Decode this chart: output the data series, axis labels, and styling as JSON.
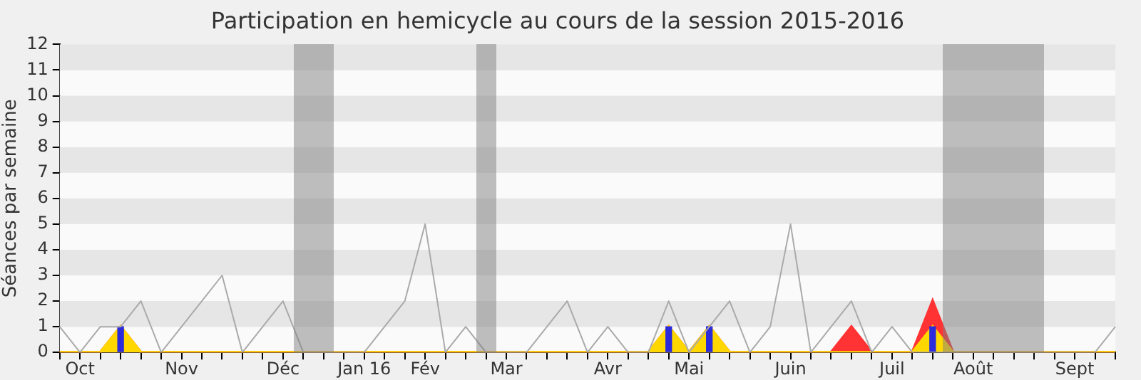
{
  "chart_data": {
    "type": "line",
    "title": "Participation en hemicycle au cours de la session 2015-2016",
    "ylabel": "Séances par semaine",
    "categories": [
      null,
      "Oct",
      null,
      null,
      null,
      null,
      "Nov",
      null,
      null,
      null,
      null,
      "Déc",
      null,
      null,
      null,
      "Jan 16",
      null,
      null,
      "Fév",
      null,
      null,
      null,
      "Mar",
      null,
      null,
      null,
      null,
      "Avr",
      null,
      null,
      null,
      "Mai",
      null,
      null,
      null,
      null,
      "Juin",
      null,
      null,
      null,
      null,
      "Juil",
      null,
      null,
      null,
      "Août",
      null,
      null,
      null,
      null,
      "Sept",
      null,
      null
    ],
    "ylim": [
      0,
      12
    ],
    "yticks": [
      0,
      1,
      2,
      3,
      4,
      5,
      6,
      7,
      8,
      9,
      10,
      11,
      12
    ],
    "series": [
      {
        "type": "area",
        "color": "#ff3333",
        "values": [
          0,
          0,
          0,
          1,
          0,
          0,
          0,
          0,
          0,
          0,
          0,
          0,
          0,
          0,
          0,
          0,
          0,
          0,
          0,
          0,
          0,
          0,
          0,
          0,
          0,
          0,
          0,
          0,
          0,
          0,
          1,
          0,
          1,
          0,
          0,
          0,
          0,
          0,
          0,
          1,
          0,
          0,
          0,
          2,
          0,
          0,
          0,
          0,
          0,
          0,
          0,
          0,
          0
        ]
      },
      {
        "type": "area",
        "color": "#ffd700",
        "values": [
          0,
          0,
          0,
          1,
          0,
          0,
          0,
          0,
          0,
          0,
          0,
          0,
          0,
          0,
          0,
          0,
          0,
          0,
          0,
          0,
          0,
          0,
          0,
          0,
          0,
          0,
          0,
          0,
          0,
          0,
          1,
          0,
          1,
          0,
          0,
          0,
          0,
          0,
          0,
          0,
          0,
          0,
          0,
          1,
          0,
          0,
          0,
          0,
          0,
          0,
          0,
          0,
          0
        ]
      },
      {
        "type": "bar",
        "color": "#2b2bdb",
        "values": [
          null,
          null,
          null,
          1,
          null,
          null,
          null,
          null,
          null,
          null,
          null,
          null,
          null,
          null,
          null,
          null,
          null,
          null,
          null,
          null,
          null,
          null,
          null,
          null,
          null,
          null,
          null,
          null,
          null,
          null,
          1,
          null,
          1,
          null,
          null,
          null,
          null,
          null,
          null,
          null,
          null,
          null,
          null,
          1,
          null,
          null,
          null,
          null,
          null,
          null,
          null,
          null,
          null
        ]
      },
      {
        "color": "#aaaaaa",
        "values": [
          1,
          0,
          1,
          1,
          2,
          0,
          1,
          2,
          3,
          0,
          1,
          2,
          0,
          0,
          0,
          0,
          1,
          2,
          5,
          0,
          1,
          0,
          0,
          0,
          1,
          2,
          0,
          1,
          0,
          0,
          2,
          0,
          1,
          2,
          0,
          1,
          5,
          0,
          1,
          2,
          0,
          1,
          0,
          0,
          0,
          0,
          0,
          0,
          0,
          0,
          0,
          0,
          1
        ]
      }
    ]
  }
}
